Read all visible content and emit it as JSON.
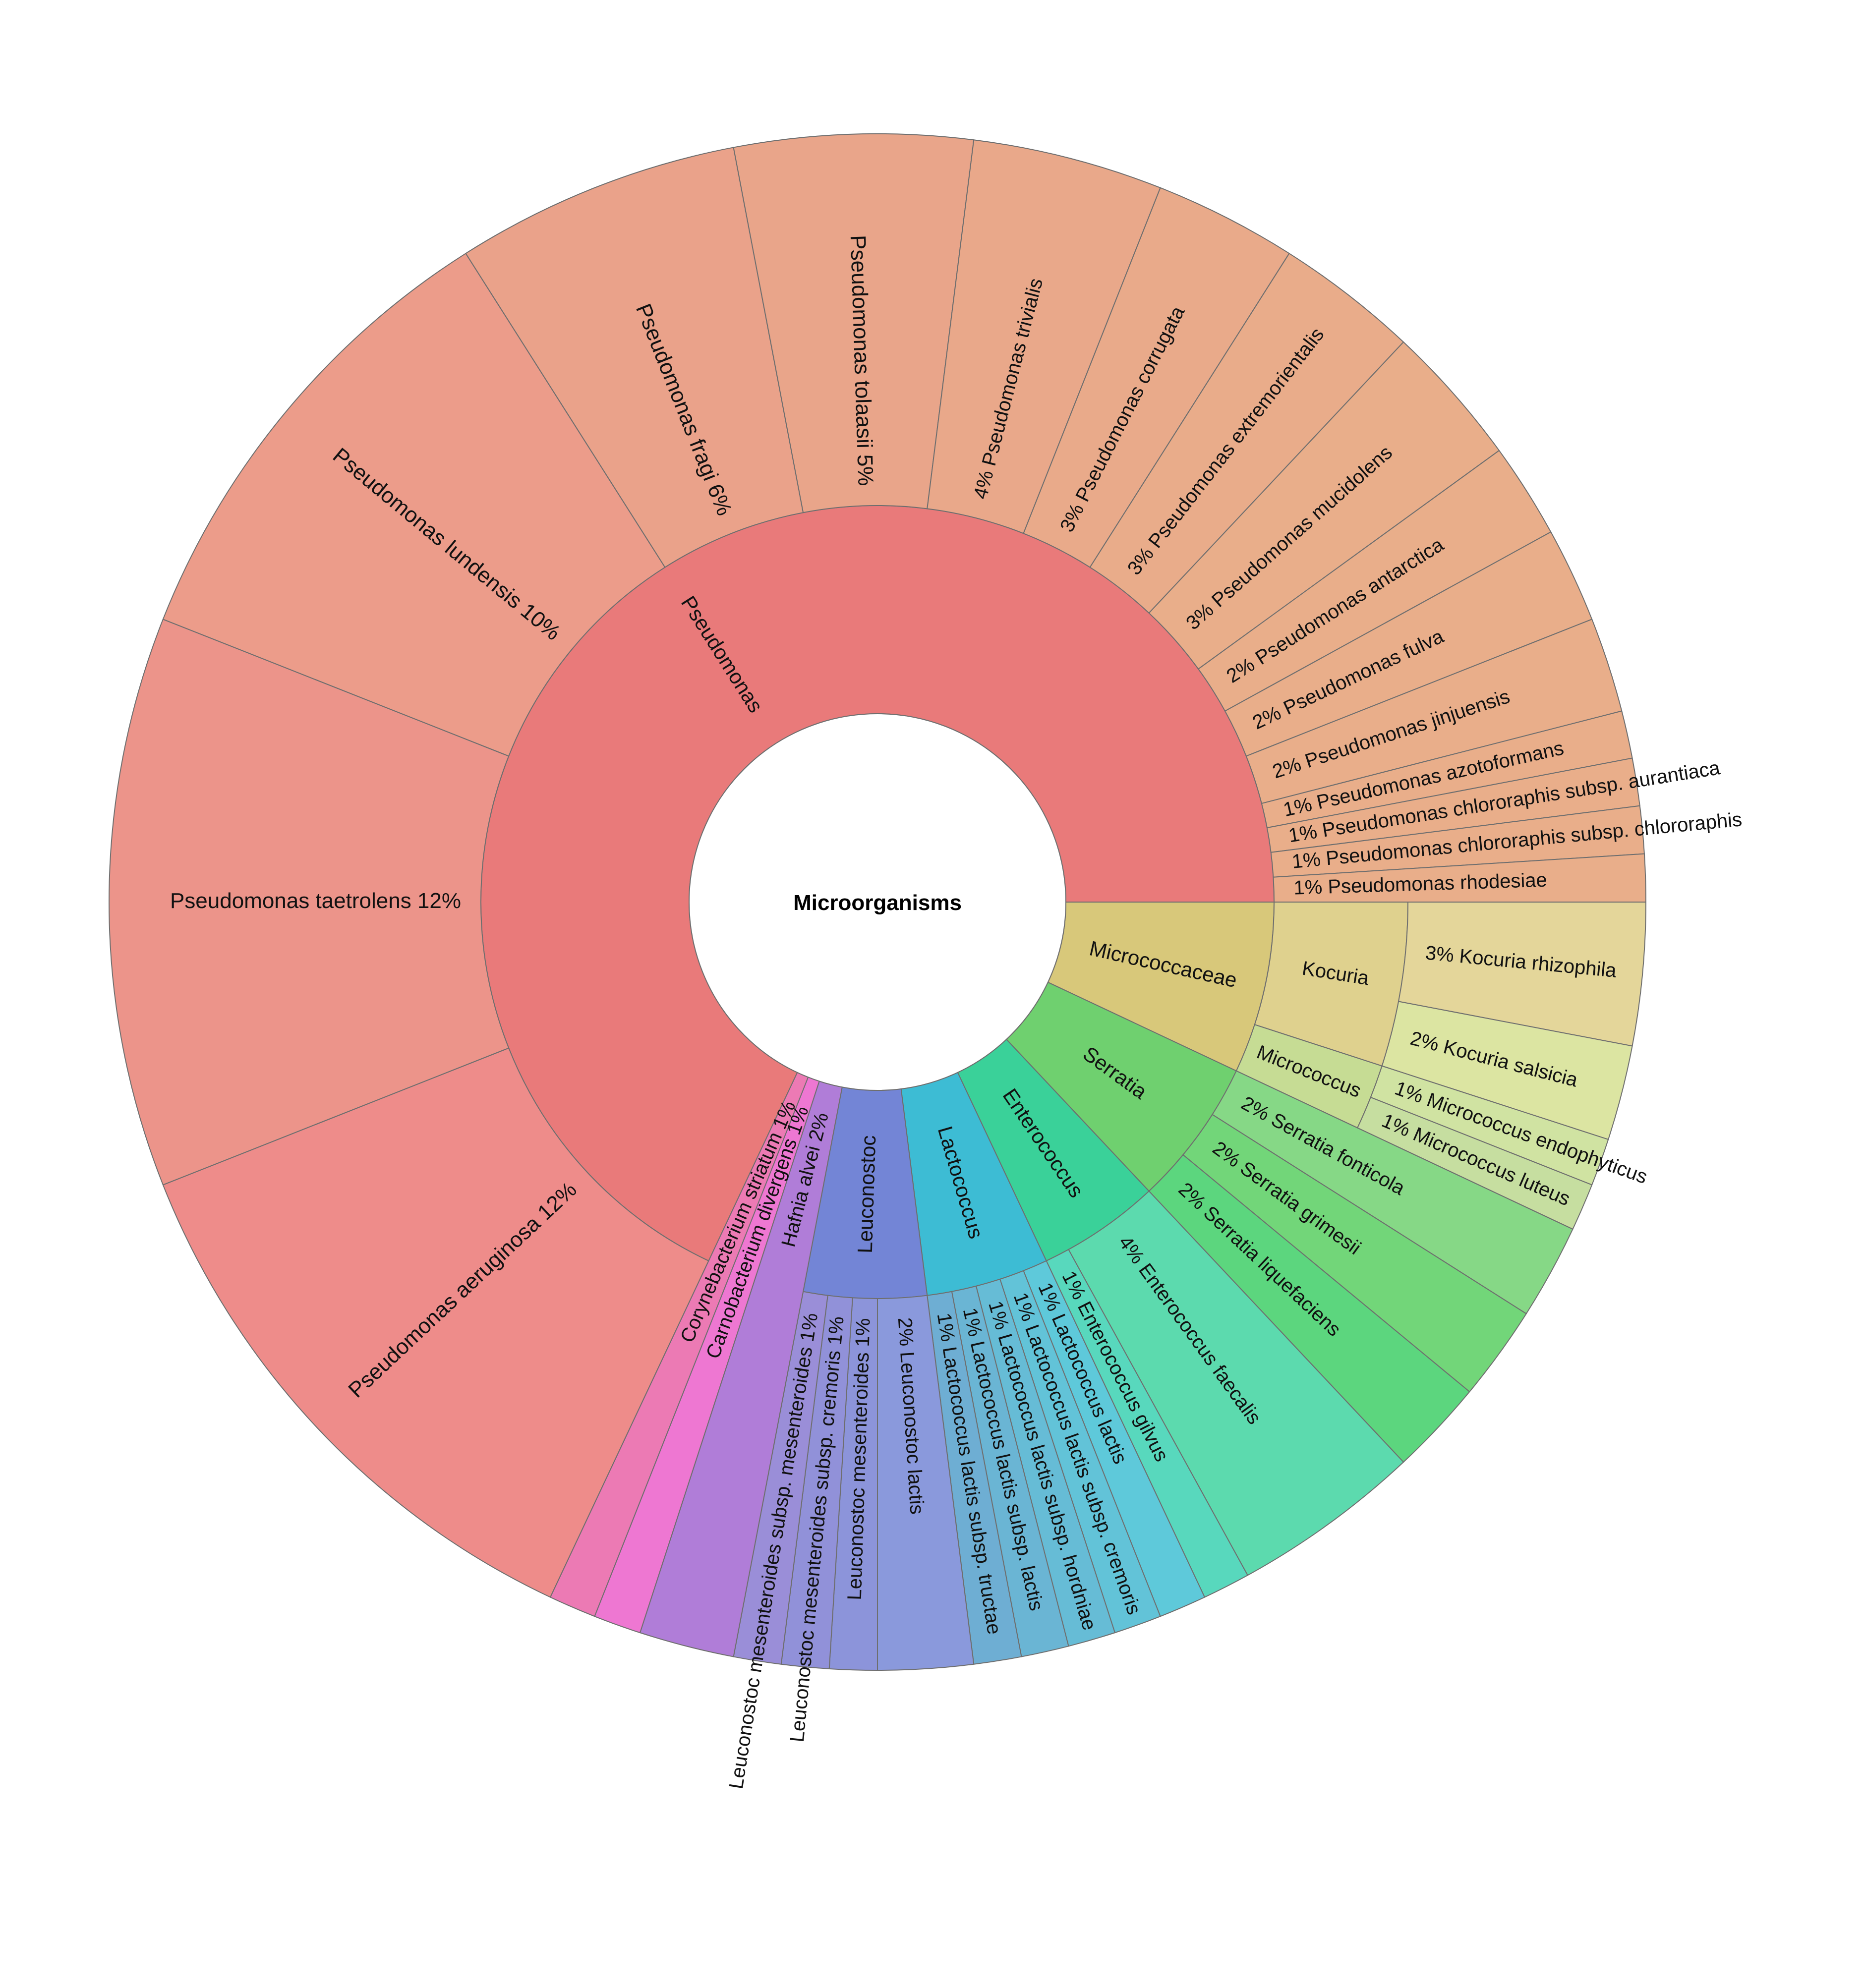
{
  "chart_data": {
    "type": "sunburst",
    "title": "Microorganisms",
    "children": [
      {
        "name": "Micrococcaceae",
        "color": "#d8c87a",
        "children": [
          {
            "name": "Kocuria",
            "color": "#dfd18e",
            "children": [
              {
                "name": "Kocuria rhizophila",
                "percent": 3,
                "label": "3%",
                "color": "#e4d69a"
              },
              {
                "name": "Kocuria salsicia",
                "percent": 2,
                "label": "2%",
                "color": "#dce5a2"
              }
            ]
          },
          {
            "name": "Micrococcus",
            "color": "#c6dc94",
            "children": [
              {
                "name": "Micrococcus endophyticus",
                "percent": 1,
                "label": "1%",
                "color": "#d0e3a2"
              },
              {
                "name": "Micrococcus luteus",
                "percent": 1,
                "label": "1%",
                "color": "#c6dea0"
              }
            ]
          }
        ]
      },
      {
        "name": "Serratia",
        "color": "#6fd06f",
        "children": [
          {
            "name": "Serratia fonticola",
            "percent": 2,
            "label": "2%",
            "color": "#86d886"
          },
          {
            "name": "Serratia grimesii",
            "percent": 2,
            "label": "2%",
            "color": "#72d679"
          },
          {
            "name": "Serratia liquefaciens",
            "percent": 2,
            "label": "2%",
            "color": "#5cd67e"
          }
        ]
      },
      {
        "name": "Enterococcus",
        "color": "#3ad199",
        "children": [
          {
            "name": "Enterococcus faecalis",
            "percent": 4,
            "label": "4%",
            "color": "#5cdaae"
          },
          {
            "name": "Enterococcus gilvus",
            "percent": 1,
            "label": "1%",
            "color": "#58d8bd"
          }
        ]
      },
      {
        "name": "Lactococcus",
        "color": "#3dbcd4",
        "children": [
          {
            "name": "Lactococcus lactis",
            "percent": 1,
            "label": "1%",
            "color": "#5ec9da"
          },
          {
            "name": "Lactococcus lactis subsp. cremoris",
            "percent": 1,
            "label": "1%",
            "color": "#62c3d8"
          },
          {
            "name": "Lactococcus lactis subsp. hordniae",
            "percent": 1,
            "label": "1%",
            "color": "#66bcd6"
          },
          {
            "name": "Lactococcus lactis subsp. lactis",
            "percent": 1,
            "label": "1%",
            "color": "#6ab5d4"
          },
          {
            "name": "Lactococcus lactis subsp. tructae",
            "percent": 1,
            "label": "1%",
            "color": "#6eaed3"
          }
        ]
      },
      {
        "name": "Leuconostoc",
        "color": "#7385d6",
        "children": [
          {
            "name": "Leuconostoc lactis",
            "percent": 2,
            "label": "2%",
            "color": "#8a99dc"
          },
          {
            "name": "Leuconostoc mesenteroides",
            "percent": 1,
            "label": "1%",
            "color": "#8c94da"
          },
          {
            "name": "Leuconostoc mesenteroides subsp. cremoris",
            "percent": 1,
            "label": "1%",
            "color": "#9191d9"
          },
          {
            "name": "Leuconostoc mesenteroides subsp. mesenteroides",
            "percent": 1,
            "label": "1%",
            "color": "#9a8ed8"
          }
        ]
      },
      {
        "name": "Hafnia alvei",
        "percent": 2,
        "label": "2%",
        "color": "#b07dd8"
      },
      {
        "name": "Carnobacterium divergens",
        "percent": 1,
        "label": "1%",
        "color": "#ee77d2"
      },
      {
        "name": "Corynebacterium striatum",
        "percent": 1,
        "label": "1%",
        "color": "#ec7ab4"
      },
      {
        "name": "Pseudomonas",
        "color": "#e97a7a",
        "children": [
          {
            "name": "Pseudomonas aeruginosa",
            "percent": 12,
            "label": "12%",
            "color": "#ee8c8a"
          },
          {
            "name": "Pseudomonas taetrolens",
            "percent": 12,
            "label": "12%",
            "color": "#ec948a"
          },
          {
            "name": "Pseudomonas lundensis",
            "percent": 10,
            "label": "10%",
            "color": "#ec9c8a"
          },
          {
            "name": "Pseudomonas fragi",
            "percent": 6,
            "label": "6%",
            "color": "#eaa28a"
          },
          {
            "name": "Pseudomonas tolaasii",
            "percent": 5,
            "label": "5%",
            "color": "#e9a58a"
          },
          {
            "name": "Pseudomonas trivialis",
            "percent": 4,
            "label": "4%",
            "color": "#e9a88a"
          },
          {
            "name": "Pseudomonas corrugata",
            "percent": 3,
            "label": "3%",
            "color": "#e9aa8a"
          },
          {
            "name": "Pseudomonas extremorientalis",
            "percent": 3,
            "label": "3%",
            "color": "#e9ac8a"
          },
          {
            "name": "Pseudomonas mucidolens",
            "percent": 3,
            "label": "3%",
            "color": "#e9ae8a"
          },
          {
            "name": "Pseudomonas antarctica",
            "percent": 2,
            "label": "2%",
            "color": "#e9ae8a"
          },
          {
            "name": "Pseudomonas fulva",
            "percent": 2,
            "label": "2%",
            "color": "#e9ae8a"
          },
          {
            "name": "Pseudomonas jinjuensis",
            "percent": 2,
            "label": "2%",
            "color": "#e9ae8a"
          },
          {
            "name": "Pseudomonas azotoformans",
            "percent": 1,
            "label": "1%",
            "color": "#e9ae8a"
          },
          {
            "name": "Pseudomonas chlororaphis subsp. aurantiaca",
            "percent": 1,
            "label": "1%",
            "color": "#e9ae8a"
          },
          {
            "name": "Pseudomonas chlororaphis subsp. chlororaphis",
            "percent": 1,
            "label": "1%",
            "color": "#e9ae8a"
          },
          {
            "name": "Pseudomonas rhodesiae",
            "percent": 1,
            "label": "1%",
            "color": "#e9ae8a"
          }
        ]
      }
    ]
  }
}
